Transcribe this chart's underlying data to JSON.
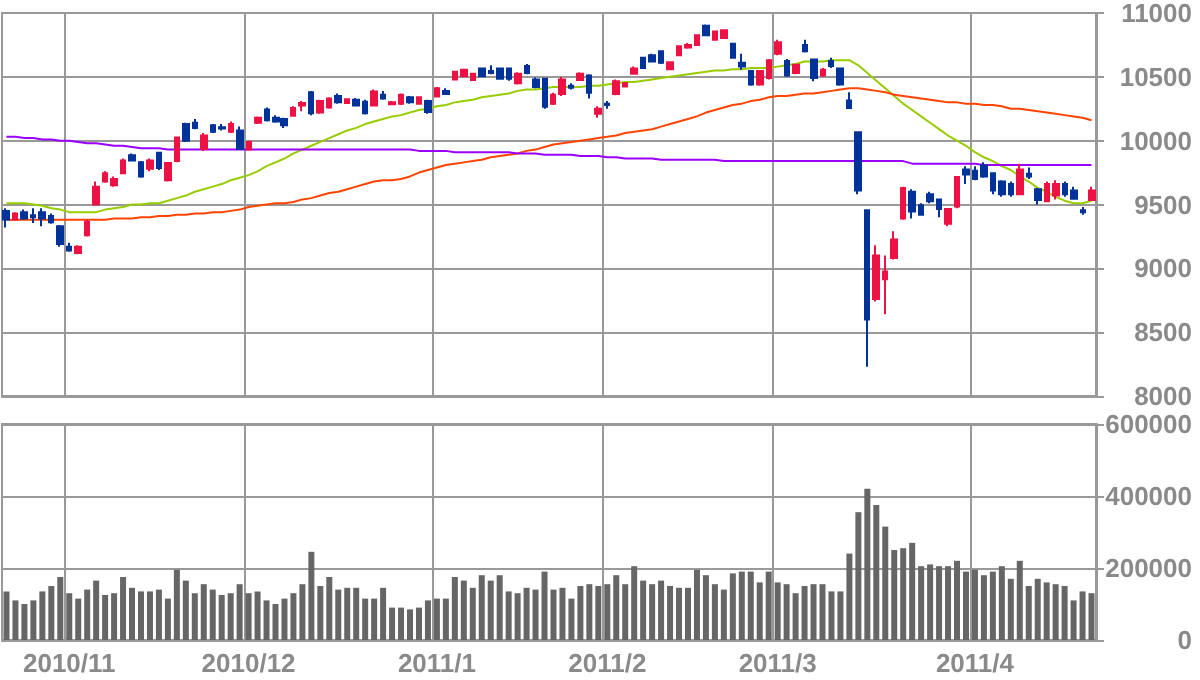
{
  "chart_data": [
    {
      "type": "candlestick",
      "categories": [
        null,
        null,
        null,
        null,
        null,
        null,
        null,
        "2010/11",
        null,
        null,
        null,
        null,
        null,
        null,
        null,
        null,
        null,
        null,
        null,
        null,
        null,
        null,
        null,
        null,
        null,
        null,
        null,
        "2010/12",
        null,
        null,
        null,
        null,
        null,
        null,
        null,
        null,
        null,
        null,
        null,
        null,
        null,
        null,
        null,
        null,
        null,
        null,
        null,
        null,
        "2011/1",
        null,
        null,
        null,
        null,
        null,
        null,
        null,
        null,
        null,
        null,
        null,
        null,
        null,
        null,
        null,
        null,
        null,
        null,
        "2011/2",
        null,
        null,
        null,
        null,
        null,
        null,
        null,
        null,
        null,
        null,
        null,
        null,
        null,
        null,
        null,
        null,
        null,
        null,
        "2011/3",
        null,
        null,
        null,
        null,
        null,
        null,
        null,
        null,
        null,
        null,
        null,
        null,
        null,
        null,
        null,
        null,
        null,
        null,
        null,
        null,
        null,
        "2011/4",
        null,
        null,
        null,
        null,
        null,
        null,
        null,
        null,
        null,
        null,
        null,
        null,
        null
      ],
      "ohlc": [
        [
          9450,
          9470,
          9320,
          9383
        ],
        [
          9383,
          9440,
          9380,
          9430
        ],
        [
          9440,
          9460,
          9380,
          9390
        ],
        [
          9415,
          9470,
          9355,
          9400
        ],
        [
          9440,
          9470,
          9330,
          9390
        ],
        [
          9410,
          9430,
          9350,
          9360
        ],
        [
          9330,
          9340,
          9170,
          9190
        ],
        [
          9170,
          9200,
          9130,
          9140
        ],
        [
          9120,
          9180,
          9110,
          9170
        ],
        [
          9260,
          9380,
          9250,
          9365
        ],
        [
          9500,
          9680,
          9490,
          9640
        ],
        [
          9680,
          9760,
          9670,
          9745
        ],
        [
          9650,
          9720,
          9640,
          9700
        ],
        [
          9745,
          9860,
          9740,
          9845
        ],
        [
          9885,
          9900,
          9840,
          9845
        ],
        [
          9830,
          9840,
          9710,
          9720
        ],
        [
          9780,
          9860,
          9760,
          9845
        ],
        [
          9905,
          9910,
          9770,
          9785
        ],
        [
          9690,
          9830,
          9680,
          9825
        ],
        [
          9840,
          10030,
          9830,
          10025
        ],
        [
          10130,
          10140,
          9990,
          10000
        ],
        [
          10140,
          10170,
          10090,
          10100
        ],
        [
          9935,
          10060,
          9920,
          10040
        ],
        [
          10120,
          10130,
          10060,
          10070
        ],
        [
          10105,
          10130,
          10080,
          10095
        ],
        [
          10070,
          10150,
          10060,
          10130
        ],
        [
          10080,
          10110,
          9930,
          9935
        ],
        [
          9930,
          10000,
          9925,
          9990
        ],
        [
          10140,
          10190,
          10130,
          10180
        ],
        [
          10245,
          10260,
          10150,
          10160
        ],
        [
          10180,
          10200,
          10140,
          10150
        ],
        [
          10170,
          10180,
          10100,
          10120
        ],
        [
          10195,
          10270,
          10190,
          10255
        ],
        [
          10275,
          10310,
          10230,
          10295
        ],
        [
          10380,
          10390,
          10200,
          10215
        ],
        [
          10220,
          10320,
          10210,
          10310
        ],
        [
          10260,
          10340,
          10250,
          10330
        ],
        [
          10350,
          10370,
          10290,
          10300
        ],
        [
          10295,
          10330,
          10290,
          10325
        ],
        [
          10320,
          10335,
          10270,
          10275
        ],
        [
          10305,
          10320,
          10205,
          10215
        ],
        [
          10275,
          10400,
          10270,
          10385
        ],
        [
          10360,
          10390,
          10320,
          10330
        ],
        [
          10285,
          10310,
          10280,
          10300
        ],
        [
          10290,
          10370,
          10280,
          10360
        ],
        [
          10340,
          10350,
          10290,
          10300
        ],
        [
          10290,
          10345,
          10285,
          10340
        ],
        [
          10310,
          10320,
          10210,
          10225
        ],
        [
          10345,
          10420,
          10340,
          10410
        ],
        [
          10390,
          10410,
          10360,
          10365
        ],
        [
          10480,
          10545,
          10475,
          10540
        ],
        [
          10505,
          10560,
          10500,
          10555
        ],
        [
          10475,
          10530,
          10470,
          10525
        ],
        [
          10565,
          10570,
          10500,
          10505
        ],
        [
          10545,
          10590,
          10520,
          10530
        ],
        [
          10565,
          10570,
          10480,
          10485
        ],
        [
          10565,
          10570,
          10470,
          10485
        ],
        [
          10450,
          10535,
          10440,
          10525
        ],
        [
          10585,
          10600,
          10520,
          10530
        ],
        [
          10480,
          10495,
          10410,
          10420
        ],
        [
          10485,
          10490,
          10250,
          10265
        ],
        [
          10290,
          10375,
          10280,
          10360
        ],
        [
          10365,
          10500,
          10350,
          10480
        ],
        [
          10430,
          10450,
          10400,
          10415
        ],
        [
          10475,
          10535,
          10470,
          10525
        ],
        [
          10510,
          10520,
          10330,
          10375
        ],
        [
          10210,
          10270,
          10180,
          10250
        ],
        [
          10290,
          10310,
          10250,
          10280
        ],
        [
          10365,
          10480,
          10355,
          10465
        ],
        [
          10425,
          10460,
          10420,
          10450
        ],
        [
          10525,
          10580,
          10520,
          10565
        ],
        [
          10650,
          10655,
          10565,
          10570
        ],
        [
          10670,
          10680,
          10615,
          10620
        ],
        [
          10700,
          10705,
          10600,
          10610
        ],
        [
          10560,
          10620,
          10555,
          10615
        ],
        [
          10670,
          10745,
          10665,
          10740
        ],
        [
          10730,
          10765,
          10720,
          10750
        ],
        [
          10750,
          10830,
          10745,
          10825
        ],
        [
          10900,
          10910,
          10820,
          10825
        ],
        [
          10790,
          10860,
          10785,
          10855
        ],
        [
          10805,
          10870,
          10800,
          10865
        ],
        [
          10760,
          10765,
          10645,
          10650
        ],
        [
          10610,
          10680,
          10555,
          10580
        ],
        [
          10545,
          10550,
          10430,
          10440
        ],
        [
          10440,
          10550,
          10430,
          10545
        ],
        [
          10490,
          10640,
          10480,
          10630
        ],
        [
          10680,
          10790,
          10670,
          10770
        ],
        [
          10625,
          10640,
          10500,
          10510
        ],
        [
          10530,
          10600,
          10520,
          10595
        ],
        [
          10750,
          10790,
          10690,
          10700
        ],
        [
          10635,
          10640,
          10465,
          10490
        ],
        [
          10510,
          10570,
          10500,
          10555
        ],
        [
          10625,
          10650,
          10570,
          10585
        ],
        [
          10565,
          10570,
          10430,
          10440
        ],
        [
          10315,
          10380,
          10250,
          10255
        ],
        [
          10065,
          10070,
          9580,
          9610
        ],
        [
          9455,
          9460,
          8230,
          8600
        ],
        [
          8760,
          9180,
          8740,
          9100
        ],
        [
          8915,
          9100,
          8640,
          8975
        ],
        [
          9080,
          9290,
          9070,
          9225
        ],
        [
          9390,
          9640,
          9380,
          9630
        ],
        [
          9600,
          9620,
          9390,
          9445
        ],
        [
          9495,
          9510,
          9415,
          9420
        ],
        [
          9580,
          9600,
          9510,
          9525
        ],
        [
          9540,
          9545,
          9400,
          9465
        ],
        [
          9350,
          9470,
          9330,
          9465
        ],
        [
          9485,
          9720,
          9470,
          9715
        ],
        [
          9775,
          9800,
          9660,
          9735
        ],
        [
          9765,
          9800,
          9690,
          9700
        ],
        [
          9805,
          9830,
          9710,
          9720
        ],
        [
          9745,
          9750,
          9580,
          9610
        ],
        [
          9680,
          9690,
          9560,
          9580
        ],
        [
          9660,
          9680,
          9560,
          9580
        ],
        [
          9580,
          9820,
          9575,
          9775
        ],
        [
          9740,
          9790,
          9700,
          9720
        ],
        [
          9620,
          9630,
          9500,
          9535
        ],
        [
          9525,
          9680,
          9520,
          9660
        ],
        [
          9570,
          9690,
          9540,
          9660
        ],
        [
          9660,
          9680,
          9560,
          9580
        ],
        [
          9610,
          9640,
          9540,
          9545
        ],
        [
          9455,
          9480,
          9420,
          9440
        ],
        [
          9535,
          9640,
          9530,
          9610
        ]
      ],
      "colors": [
        "#003399",
        "#ee1144",
        "#003399",
        "#003399",
        "#003399",
        "#003399",
        "#003399",
        "#003399",
        "#ee1144",
        "#ee1144",
        "#ee1144",
        "#ee1144",
        "#ee1144",
        "#ee1144",
        "#003399",
        "#003399",
        "#ee1144",
        "#003399",
        "#ee1144",
        "#ee1144",
        "#003399",
        "#003399",
        "#ee1144",
        "#003399",
        "#003399",
        "#ee1144",
        "#003399",
        "#ee1144",
        "#ee1144",
        "#003399",
        "#003399",
        "#003399",
        "#ee1144",
        "#ee1144",
        "#003399",
        "#ee1144",
        "#ee1144",
        "#003399",
        "#ee1144",
        "#003399",
        "#003399",
        "#ee1144",
        "#003399",
        "#ee1144",
        "#ee1144",
        "#003399",
        "#ee1144",
        "#003399",
        "#ee1144",
        "#003399",
        "#ee1144",
        "#ee1144",
        "#ee1144",
        "#003399",
        "#003399",
        "#003399",
        "#003399",
        "#ee1144",
        "#003399",
        "#003399",
        "#003399",
        "#ee1144",
        "#ee1144",
        "#003399",
        "#ee1144",
        "#003399",
        "#ee1144",
        "#003399",
        "#ee1144",
        "#ee1144",
        "#ee1144",
        "#003399",
        "#003399",
        "#003399",
        "#ee1144",
        "#ee1144",
        "#ee1144",
        "#ee1144",
        "#003399",
        "#ee1144",
        "#ee1144",
        "#003399",
        "#003399",
        "#003399",
        "#ee1144",
        "#ee1144",
        "#ee1144",
        "#003399",
        "#ee1144",
        "#003399",
        "#003399",
        "#ee1144",
        "#003399",
        "#003399",
        "#003399",
        "#003399",
        "#003399",
        "#ee1144",
        "#ee1144",
        "#ee1144",
        "#ee1144",
        "#003399",
        "#003399",
        "#003399",
        "#003399",
        "#ee1144",
        "#ee1144",
        "#003399",
        "#003399",
        "#003399",
        "#003399",
        "#003399",
        "#003399",
        "#ee1144",
        "#003399",
        "#003399",
        "#ee1144",
        "#ee1144",
        "#003399",
        "#003399",
        "#003399",
        "#ee1144"
      ],
      "series": [
        {
          "type": "line",
          "color": "#99cc00",
          "values": [
            9510,
            9510,
            9510,
            9500,
            9490,
            9470,
            9460,
            9440,
            9440,
            9440,
            9440,
            9460,
            9470,
            9480,
            9500,
            9500,
            9510,
            9510,
            9530,
            9550,
            9570,
            9600,
            9620,
            9640,
            9660,
            9690,
            9710,
            9730,
            9760,
            9800,
            9830,
            9860,
            9900,
            9930,
            9960,
            9990,
            10020,
            10050,
            10080,
            10100,
            10130,
            10150,
            10170,
            10190,
            10200,
            10220,
            10240,
            10250,
            10270,
            10280,
            10300,
            10310,
            10320,
            10340,
            10350,
            10360,
            10370,
            10390,
            10400,
            10400,
            10410,
            10420,
            10420,
            10420,
            10420,
            10430,
            10430,
            10440,
            10450,
            10460,
            10460,
            10470,
            10480,
            10490,
            10500,
            10510,
            10520,
            10530,
            10540,
            10550,
            10550,
            10560,
            10560,
            10570,
            10570,
            10570,
            10580,
            10590,
            10600,
            10620,
            10620,
            10620,
            10630,
            10630,
            10630,
            10590,
            10530,
            10470,
            10410,
            10350,
            10290,
            10240,
            10190,
            10140,
            10090,
            10040,
            10000,
            9960,
            9910,
            9870,
            9840,
            9800,
            9770,
            9720,
            9680,
            9630,
            9600,
            9560,
            9530,
            9510,
            9510,
            9530
          ]
        },
        {
          "type": "line",
          "color": "#ff4400",
          "values": [
            9380,
            9380,
            9380,
            9380,
            9380,
            9380,
            9380,
            9380,
            9380,
            9380,
            9380,
            9380,
            9390,
            9390,
            9390,
            9400,
            9400,
            9410,
            9410,
            9420,
            9420,
            9430,
            9430,
            9440,
            9440,
            9450,
            9460,
            9480,
            9490,
            9500,
            9510,
            9510,
            9520,
            9540,
            9550,
            9570,
            9590,
            9600,
            9620,
            9640,
            9660,
            9680,
            9690,
            9690,
            9700,
            9720,
            9750,
            9770,
            9790,
            9810,
            9820,
            9830,
            9840,
            9850,
            9870,
            9880,
            9890,
            9900,
            9920,
            9930,
            9950,
            9970,
            9980,
            9990,
            10000,
            10010,
            10020,
            10030,
            10040,
            10060,
            10070,
            10080,
            10090,
            10110,
            10130,
            10150,
            10170,
            10190,
            10220,
            10240,
            10260,
            10280,
            10290,
            10310,
            10320,
            10340,
            10350,
            10350,
            10360,
            10370,
            10370,
            10380,
            10390,
            10400,
            10410,
            10410,
            10400,
            10390,
            10380,
            10360,
            10350,
            10340,
            10330,
            10320,
            10310,
            10300,
            10300,
            10290,
            10290,
            10280,
            10280,
            10270,
            10250,
            10250,
            10240,
            10230,
            10220,
            10210,
            10200,
            10190,
            10180,
            10160
          ]
        },
        {
          "type": "line",
          "color": "#9900ff",
          "values": [
            10030,
            10030,
            10020,
            10020,
            10010,
            10010,
            10000,
            10000,
            9990,
            9980,
            9980,
            9970,
            9960,
            9960,
            9950,
            9940,
            9940,
            9940,
            9930,
            9930,
            9930,
            9930,
            9930,
            9930,
            9930,
            9930,
            9930,
            9930,
            9930,
            9930,
            9930,
            9930,
            9930,
            9930,
            9930,
            9930,
            9930,
            9930,
            9930,
            9930,
            9930,
            9930,
            9930,
            9930,
            9930,
            9930,
            9920,
            9920,
            9920,
            9920,
            9910,
            9910,
            9910,
            9910,
            9910,
            9910,
            9910,
            9900,
            9900,
            9900,
            9890,
            9890,
            9890,
            9890,
            9880,
            9880,
            9880,
            9870,
            9870,
            9860,
            9860,
            9860,
            9860,
            9850,
            9850,
            9850,
            9850,
            9850,
            9850,
            9850,
            9840,
            9840,
            9840,
            9840,
            9840,
            9840,
            9840,
            9840,
            9840,
            9840,
            9840,
            9840,
            9840,
            9840,
            9840,
            9840,
            9840,
            9840,
            9840,
            9840,
            9840,
            9820,
            9820,
            9820,
            9820,
            9820,
            9820,
            9820,
            9820,
            9810,
            9810,
            9810,
            9810,
            9810,
            9810,
            9810,
            9810,
            9810,
            9810,
            9810,
            9810,
            9810
          ]
        }
      ],
      "ylim": [
        8000,
        11000
      ],
      "yticks": [
        8000,
        8500,
        9000,
        9500,
        10000,
        10500,
        11000
      ],
      "grid": true,
      "tick_labels": "y"
    },
    {
      "type": "bar",
      "categories": [
        null,
        null,
        null,
        null,
        null,
        null,
        null,
        "2010/11",
        null,
        null,
        null,
        null,
        null,
        null,
        null,
        null,
        null,
        null,
        null,
        null,
        null,
        null,
        null,
        null,
        null,
        null,
        null,
        "2010/12",
        null,
        null,
        null,
        null,
        null,
        null,
        null,
        null,
        null,
        null,
        null,
        null,
        null,
        null,
        null,
        null,
        null,
        null,
        null,
        null,
        "2011/1",
        null,
        null,
        null,
        null,
        null,
        null,
        null,
        null,
        null,
        null,
        null,
        null,
        null,
        null,
        null,
        null,
        null,
        null,
        "2011/2",
        null,
        null,
        null,
        null,
        null,
        null,
        null,
        null,
        null,
        null,
        null,
        null,
        null,
        null,
        null,
        null,
        null,
        null,
        "2011/3",
        null,
        null,
        null,
        null,
        null,
        null,
        null,
        null,
        null,
        null,
        null,
        null,
        null,
        null,
        null,
        null,
        null,
        null,
        null,
        null,
        null,
        "2011/4",
        null,
        null,
        null,
        null,
        null,
        null,
        null,
        null,
        null,
        null,
        null,
        null,
        null
      ],
      "values": [
        135000,
        110000,
        100000,
        110000,
        135000,
        150000,
        175000,
        130000,
        115000,
        140000,
        165000,
        125000,
        130000,
        175000,
        145000,
        135000,
        135000,
        140000,
        115000,
        195000,
        165000,
        130000,
        155000,
        140000,
        125000,
        130000,
        155000,
        130000,
        135000,
        110000,
        100000,
        115000,
        130000,
        155000,
        245000,
        150000,
        175000,
        140000,
        145000,
        145000,
        115000,
        115000,
        145000,
        90000,
        90000,
        85000,
        90000,
        110000,
        115000,
        115000,
        175000,
        165000,
        145000,
        180000,
        165000,
        180000,
        135000,
        130000,
        145000,
        140000,
        190000,
        140000,
        145000,
        115000,
        150000,
        155000,
        150000,
        155000,
        180000,
        155000,
        205000,
        165000,
        155000,
        165000,
        150000,
        145000,
        145000,
        195000,
        180000,
        155000,
        140000,
        185000,
        190000,
        190000,
        160000,
        190000,
        160000,
        155000,
        130000,
        150000,
        155000,
        155000,
        135000,
        135000,
        240000,
        355000,
        420000,
        375000,
        315000,
        250000,
        255000,
        270000,
        205000,
        210000,
        205000,
        205000,
        220000,
        190000,
        195000,
        180000,
        190000,
        205000,
        170000,
        220000,
        150000,
        170000,
        160000,
        155000,
        150000,
        110000,
        135000,
        130000
      ],
      "color": "#666666",
      "ylim": [
        0,
        600000
      ],
      "yticks": [
        0,
        200000,
        400000,
        600000
      ],
      "grid": true
    }
  ]
}
